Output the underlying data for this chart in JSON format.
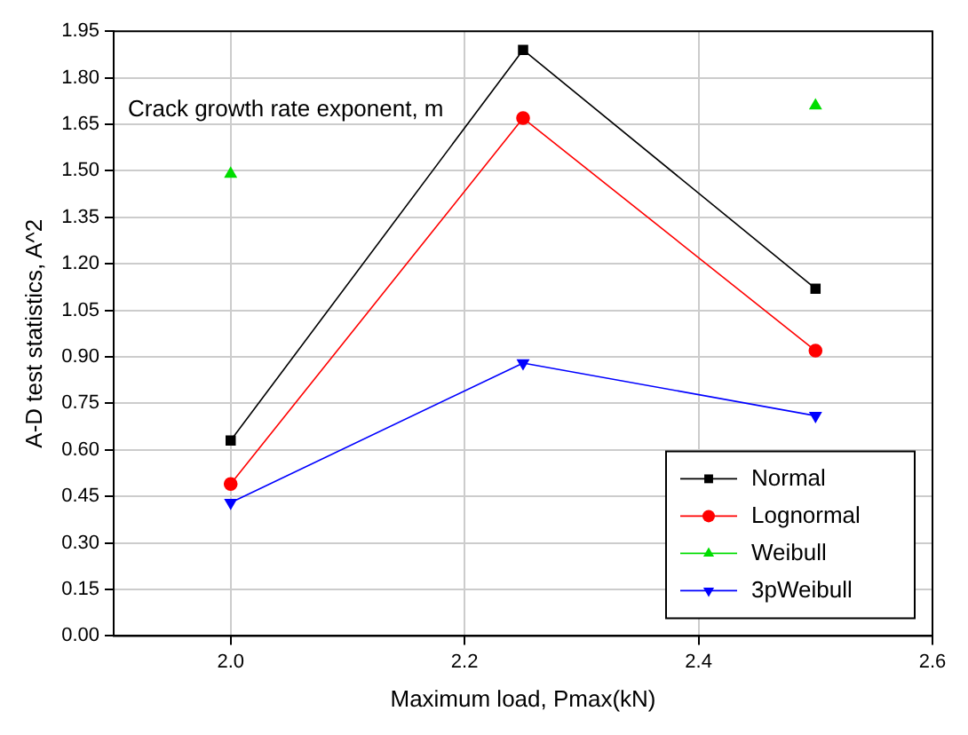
{
  "chart_data": {
    "type": "line",
    "xlabel": "Maximum load, Pmax(kN)",
    "ylabel": "A-D test statistics, A^2",
    "annotations": [
      "Crack growth rate exponent, m"
    ],
    "x": [
      2.0,
      2.25,
      2.5
    ],
    "series": [
      {
        "name": "Normal",
        "color": "#000000",
        "marker": "square",
        "values": [
          0.63,
          1.89,
          1.12
        ]
      },
      {
        "name": "Lognormal",
        "color": "#ff0000",
        "marker": "circle",
        "values": [
          0.49,
          1.67,
          0.92
        ]
      },
      {
        "name": "Weibull",
        "color": "#00dd00",
        "marker": "triangle",
        "values": [
          1.49,
          null,
          1.71
        ]
      },
      {
        "name": "3pWeibull",
        "color": "#0000ff",
        "marker": "triangle-down",
        "values": [
          0.43,
          0.88,
          0.71
        ]
      }
    ],
    "xlim": [
      1.9,
      2.6
    ],
    "xticks": [
      {
        "value": 2.0,
        "label": "2.0"
      },
      {
        "value": 2.2,
        "label": "2.2"
      },
      {
        "value": 2.4,
        "label": "2.4"
      },
      {
        "value": 2.6,
        "label": "2.6"
      }
    ],
    "ylim": [
      0,
      1.95
    ],
    "yticks": [
      {
        "value": 0,
        "label": "0.00"
      },
      {
        "value": 0.15,
        "label": "0.15"
      },
      {
        "value": 0.3,
        "label": "0.30"
      },
      {
        "value": 0.45,
        "label": "0.45"
      },
      {
        "value": 0.6,
        "label": "0.60"
      },
      {
        "value": 0.75,
        "label": "0.75"
      },
      {
        "value": 0.9,
        "label": "0.90"
      },
      {
        "value": 1.05,
        "label": "1.05"
      },
      {
        "value": 1.2,
        "label": "1.20"
      },
      {
        "value": 1.35,
        "label": "1.35"
      },
      {
        "value": 1.5,
        "label": "1.50"
      },
      {
        "value": 1.65,
        "label": "1.65"
      },
      {
        "value": 1.8,
        "label": "1.80"
      },
      {
        "value": 1.95,
        "label": "1.95"
      }
    ],
    "grid": true,
    "legend": "bottom right",
    "line_style": "solid"
  }
}
